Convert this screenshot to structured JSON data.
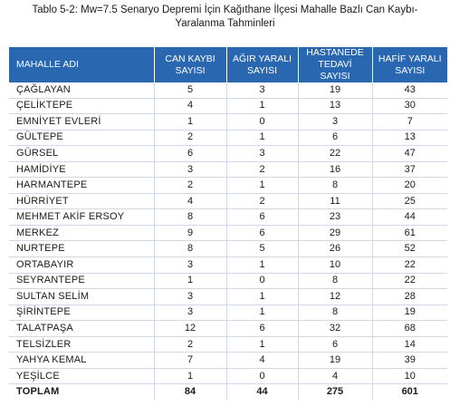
{
  "caption": {
    "line1": "Tablo 5-2: Mw=7.5 Senaryo Depremi İçin Kağıthane İlçesi Mahalle Bazlı Can Kaybı-",
    "line2": "Yaralanma Tahminleri"
  },
  "table": {
    "headers": [
      "MAHALLE ADI",
      "CAN KAYBI SAYISI",
      "AĞIR YARALI SAYISI",
      "HASTANEDE TEDAVİ SAYISI",
      "HAFİF YARALI SAYISI"
    ],
    "rows": [
      [
        "ÇAĞLAYAN",
        "5",
        "3",
        "19",
        "43"
      ],
      [
        "ÇELİKTEPE",
        "4",
        "1",
        "13",
        "30"
      ],
      [
        "EMNİYET EVLERİ",
        "1",
        "0",
        "3",
        "7"
      ],
      [
        "GÜLTEPE",
        "2",
        "1",
        "6",
        "13"
      ],
      [
        "GÜRSEL",
        "6",
        "3",
        "22",
        "47"
      ],
      [
        "HAMİDİYE",
        "3",
        "2",
        "16",
        "37"
      ],
      [
        "HARMANTEPE",
        "2",
        "1",
        "8",
        "20"
      ],
      [
        "HÜRRİYET",
        "4",
        "2",
        "11",
        "25"
      ],
      [
        "MEHMET AKİF ERSOY",
        "8",
        "6",
        "23",
        "44"
      ],
      [
        "MERKEZ",
        "9",
        "6",
        "29",
        "61"
      ],
      [
        "NURTEPE",
        "8",
        "5",
        "26",
        "52"
      ],
      [
        "ORTABAYIR",
        "3",
        "1",
        "10",
        "22"
      ],
      [
        "SEYRANTEPE",
        "1",
        "0",
        "8",
        "22"
      ],
      [
        "SULTAN SELİM",
        "3",
        "1",
        "12",
        "28"
      ],
      [
        "ŞİRİNTEPE",
        "3",
        "1",
        "8",
        "19"
      ],
      [
        "TALATPAŞA",
        "12",
        "6",
        "32",
        "68"
      ],
      [
        "TELSİZLER",
        "2",
        "1",
        "6",
        "14"
      ],
      [
        "YAHYA KEMAL",
        "7",
        "4",
        "19",
        "39"
      ],
      [
        "YEŞİLCE",
        "1",
        "0",
        "4",
        "10"
      ]
    ],
    "total": [
      "TOPLAM",
      "84",
      "44",
      "275",
      "601"
    ]
  },
  "colors": {
    "header_bg": "#2a67b1",
    "header_text": "#ffffff",
    "grid_line": "#cfd9ea"
  }
}
